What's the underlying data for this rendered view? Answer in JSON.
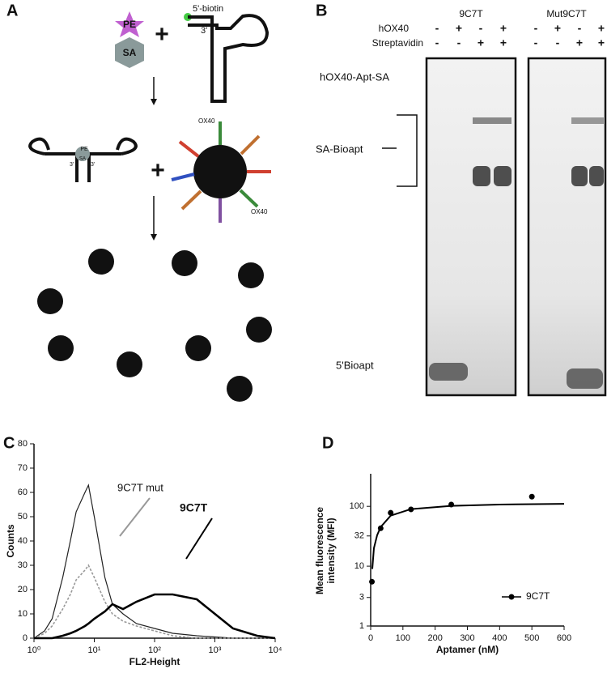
{
  "panel_a": {
    "label": "A",
    "pe": "PE",
    "sa": "SA",
    "biotin": "5'-biotin",
    "three_prime": "3'",
    "complex_pe": "PE",
    "complex_sa": "SA",
    "complex_three_prime": [
      "3'",
      "3'"
    ],
    "ox40": [
      "OX40",
      "OX40"
    ]
  },
  "panel_b": {
    "label": "B",
    "groups": [
      "9C7T",
      "Mut9C7T"
    ],
    "rows": [
      {
        "name": "hOX40",
        "signs": [
          "-",
          "+",
          "-",
          "+",
          "-",
          "+",
          "-",
          "+"
        ]
      },
      {
        "name": "Streptavidin",
        "signs": [
          "-",
          "-",
          "+",
          "+",
          "-",
          "-",
          "+",
          "+"
        ]
      }
    ],
    "band_labels": [
      "hOX40-Apt-SA",
      "SA-Bioapt",
      "5'Bioapt"
    ]
  },
  "chart_data": [
    {
      "type": "line",
      "panel_label": "C",
      "xlabel": "FL2-Height",
      "ylabel": "Counts",
      "xscale": "log",
      "x": [
        1,
        1.5,
        2,
        3,
        4,
        5,
        7,
        8,
        10,
        15,
        20,
        30,
        50,
        100,
        200,
        500,
        1000,
        2000,
        5000,
        10000
      ],
      "series": [
        {
          "color": "#222222",
          "values": [
            0,
            3,
            8,
            25,
            40,
            52,
            60,
            63,
            50,
            25,
            14,
            10,
            6,
            4,
            2,
            1,
            0.5,
            0,
            0,
            0
          ]
        },
        {
          "name": "9C7T mut",
          "color": "#999999",
          "values": [
            0,
            2,
            5,
            12,
            18,
            24,
            28,
            30,
            25,
            15,
            10,
            7,
            5,
            3,
            1,
            0,
            0,
            0,
            0,
            0
          ]
        },
        {
          "name": "9C7T",
          "color": "#000000",
          "values": [
            0,
            0,
            0,
            1,
            2,
            3,
            5,
            6,
            8,
            11,
            14,
            12,
            15,
            18,
            18,
            16,
            10,
            4,
            1,
            0
          ]
        }
      ],
      "xlim": [
        1,
        10000
      ],
      "xticks": [
        {
          "value": 1,
          "label": "10⁰"
        },
        {
          "value": 10,
          "label": "10¹"
        },
        {
          "value": 100,
          "label": "10²"
        },
        {
          "value": 1000,
          "label": "10³"
        },
        {
          "value": 10000,
          "label": "10⁴"
        }
      ],
      "ylim": [
        0,
        80
      ],
      "yticks": [
        0,
        10,
        20,
        30,
        40,
        50,
        60,
        70,
        80
      ]
    },
    {
      "type": "scatter",
      "panel_label": "D",
      "xlabel": "Aptamer (nM)",
      "ylabel": [
        "Mean fluorescence",
        "intensity (MFI)"
      ],
      "yscale": "log",
      "series": [
        {
          "name": "9C7T",
          "color": "#000000",
          "x": [
            3.9,
            31,
            62,
            125,
            250,
            500
          ],
          "values": [
            5.5,
            43,
            78,
            89,
            107,
            145
          ]
        }
      ],
      "fit": {
        "color": "#000000",
        "x": [
          5,
          10,
          20,
          31,
          62,
          125,
          250,
          400,
          600
        ],
        "values": [
          9,
          20,
          33,
          45,
          70,
          90,
          102,
          107,
          110
        ]
      },
      "xlim": [
        0,
        600
      ],
      "xticks": [
        0,
        100,
        200,
        300,
        400,
        500,
        600
      ],
      "ylim": [
        1,
        350
      ],
      "yticks": [
        1,
        3,
        10,
        32,
        100
      ],
      "legend": "lower-right"
    }
  ]
}
